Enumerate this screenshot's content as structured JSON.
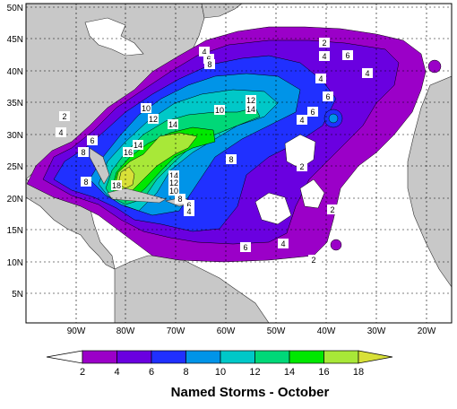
{
  "map": {
    "title": "Named Storms - October",
    "lat_labels": [
      "5N",
      "10N",
      "15N",
      "20N",
      "25N",
      "30N",
      "35N",
      "40N",
      "45N",
      "50N"
    ],
    "lon_labels": [
      "90W",
      "80W",
      "70W",
      "60W",
      "50W",
      "40W",
      "30W",
      "20W"
    ],
    "contour_labels": [
      "2",
      "4",
      "6",
      "8",
      "10",
      "12",
      "14",
      "16",
      "18"
    ],
    "legend": {
      "ticks": [
        "2",
        "4",
        "6",
        "8",
        "10",
        "12",
        "14",
        "16",
        "18"
      ],
      "colors": [
        "#ffffff",
        "#9b00c8",
        "#6a00e0",
        "#2030ff",
        "#0094e8",
        "#00c8c8",
        "#00d878",
        "#00e800",
        "#a8e838",
        "#d8e038"
      ]
    },
    "colors": {
      "land": "#c8c8c8",
      "ocean": "#ffffff",
      "c2": "#9b00c8",
      "c4": "#6a00e0",
      "c6": "#2030ff",
      "c8": "#0094e8",
      "c10": "#00c8c8",
      "c12": "#00d878",
      "c14": "#00e800",
      "c16": "#a8e838",
      "c18": "#d8e038"
    }
  }
}
